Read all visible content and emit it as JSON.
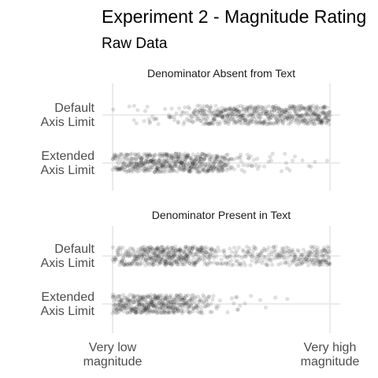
{
  "chart_data": {
    "type": "scatter",
    "title": "Experiment 2 - Magnitude Rating",
    "subtitle": "Raw Data",
    "x_tick_labels": [
      [
        "Very low",
        "magnitude"
      ],
      [
        "Very high",
        "magnitude"
      ]
    ],
    "xlim": [
      0,
      1
    ],
    "grid": true,
    "point_color": "#000000",
    "point_opacity": 0.12,
    "panels": [
      {
        "title": "Denominator Absent from Text",
        "rows": [
          {
            "label": [
              "Default",
              "Axis Limit"
            ],
            "density": [
              [
                0.05,
                0.05
              ],
              [
                0.15,
                0.2
              ],
              [
                0.3,
                0.4
              ],
              [
                0.45,
                1.8
              ],
              [
                0.55,
                2.2
              ],
              [
                0.7,
                2.0
              ],
              [
                0.85,
                2.2
              ],
              [
                1.0,
                2.5
              ]
            ]
          },
          {
            "label": [
              "Extended",
              "Axis Limit"
            ],
            "density": [
              [
                0.0,
                1.5
              ],
              [
                0.1,
                2.5
              ],
              [
                0.3,
                2.8
              ],
              [
                0.5,
                2.3
              ],
              [
                0.55,
                0.5
              ],
              [
                0.7,
                0.3
              ],
              [
                0.85,
                0.15
              ],
              [
                1.0,
                0.05
              ]
            ]
          }
        ]
      },
      {
        "title": "Denominator Present in Text",
        "rows": [
          {
            "label": [
              "Default",
              "Axis Limit"
            ],
            "density": [
              [
                0.0,
                1.0
              ],
              [
                0.1,
                2.0
              ],
              [
                0.25,
                3.0
              ],
              [
                0.4,
                2.0
              ],
              [
                0.5,
                0.8
              ],
              [
                0.7,
                1.0
              ],
              [
                0.85,
                1.5
              ],
              [
                1.0,
                2.0
              ]
            ]
          },
          {
            "label": [
              "Extended",
              "Axis Limit"
            ],
            "density": [
              [
                0.0,
                2.0
              ],
              [
                0.15,
                3.0
              ],
              [
                0.3,
                2.5
              ],
              [
                0.43,
                1.0
              ],
              [
                0.5,
                0.2
              ],
              [
                0.65,
                0.1
              ],
              [
                0.8,
                0.03
              ],
              [
                1.0,
                0.0
              ]
            ]
          }
        ]
      }
    ]
  }
}
